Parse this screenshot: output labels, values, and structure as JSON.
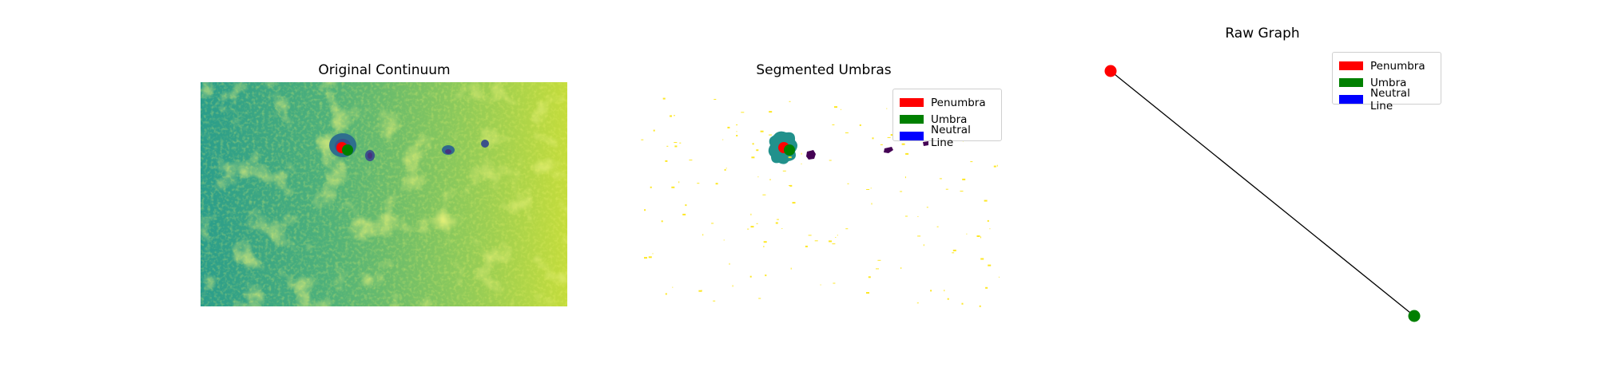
{
  "colors": {
    "penumbra": "#ff0000",
    "umbra": "#008000",
    "neutral_line": "#0000ff",
    "viridis_mid": "#2fa08a",
    "viridis_yellow": "#fde725",
    "viridis_dark": "#440154",
    "viridis_teal": "#21918c"
  },
  "legend_items": [
    {
      "label": "Penumbra",
      "color": "#ff0000"
    },
    {
      "label": "Umbra",
      "color": "#008000"
    },
    {
      "label": "Neutral Line",
      "color": "#0000ff"
    }
  ],
  "chart_data": [
    {
      "type": "heatmap",
      "title": "Original Continuum",
      "axes": "off",
      "colormap": "viridis",
      "markers": [
        {
          "name": "Penumbra",
          "color": "#ff0000"
        },
        {
          "name": "Umbra",
          "color": "#008000"
        }
      ]
    },
    {
      "type": "heatmap",
      "title": "Segmented Umbras",
      "axes": "off",
      "colormap": "viridis",
      "legend": {
        "placement": "top-right",
        "entries": [
          "Penumbra",
          "Umbra",
          "Neutral Line"
        ]
      },
      "markers": [
        {
          "name": "Penumbra",
          "color": "#ff0000"
        },
        {
          "name": "Umbra",
          "color": "#008000"
        }
      ]
    },
    {
      "type": "scatter",
      "title": "Raw Graph",
      "axes": "off",
      "legend": {
        "placement": "top-right",
        "entries": [
          "Penumbra",
          "Umbra",
          "Neutral Line"
        ]
      },
      "nodes": [
        {
          "name": "Penumbra",
          "color": "#ff0000",
          "x": 0,
          "y": 1
        },
        {
          "name": "Umbra",
          "color": "#008000",
          "x": 1,
          "y": 0
        }
      ],
      "edges": [
        {
          "from": "Penumbra",
          "to": "Umbra",
          "color": "#000000"
        }
      ]
    }
  ]
}
